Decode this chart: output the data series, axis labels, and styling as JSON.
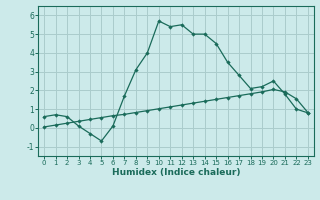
{
  "xlabel": "Humidex (Indice chaleur)",
  "bg_color": "#cceaea",
  "grid_color": "#aacccc",
  "line_color": "#1a6b5a",
  "x_line1": [
    0,
    1,
    2,
    3,
    4,
    5,
    6,
    7,
    8,
    9,
    10,
    11,
    12,
    13,
    14,
    15,
    16,
    17,
    18,
    19,
    20,
    21,
    22,
    23
  ],
  "y_line1": [
    0.6,
    0.7,
    0.6,
    0.1,
    -0.3,
    -0.7,
    0.1,
    1.7,
    3.1,
    4.0,
    5.7,
    5.4,
    5.5,
    5.0,
    5.0,
    4.5,
    3.5,
    2.8,
    2.1,
    2.2,
    2.5,
    1.8,
    1.0,
    0.8
  ],
  "x_line2": [
    0,
    1,
    2,
    3,
    4,
    5,
    6,
    7,
    8,
    9,
    10,
    11,
    12,
    13,
    14,
    15,
    16,
    17,
    18,
    19,
    20,
    21,
    22,
    23
  ],
  "y_line2": [
    0.05,
    0.15,
    0.25,
    0.35,
    0.45,
    0.55,
    0.65,
    0.72,
    0.82,
    0.92,
    1.02,
    1.12,
    1.22,
    1.32,
    1.42,
    1.52,
    1.62,
    1.72,
    1.82,
    1.92,
    2.05,
    1.92,
    1.55,
    0.82
  ],
  "ylim": [
    -1.5,
    6.5
  ],
  "xlim": [
    -0.5,
    23.5
  ],
  "yticks": [
    -1,
    0,
    1,
    2,
    3,
    4,
    5,
    6
  ],
  "xticks": [
    0,
    1,
    2,
    3,
    4,
    5,
    6,
    7,
    8,
    9,
    10,
    11,
    12,
    13,
    14,
    15,
    16,
    17,
    18,
    19,
    20,
    21,
    22,
    23
  ]
}
